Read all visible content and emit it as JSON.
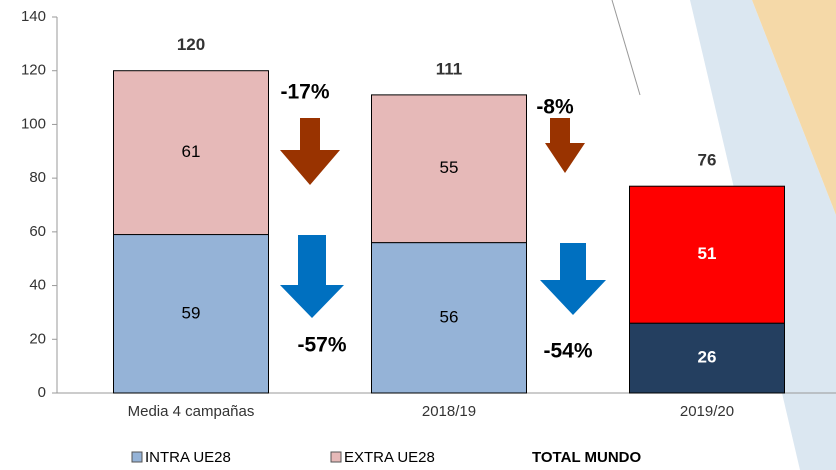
{
  "chart_data": {
    "type": "stacked_bar",
    "categories": [
      "Media 4 campañas",
      "2018/19",
      "2019/20"
    ],
    "series": [
      {
        "name": "INTRA UE28",
        "color": "#95b3d7",
        "colors": [
          "#95b3d7",
          "#95b3d7",
          "#243f60"
        ],
        "values": [
          59,
          56,
          26
        ]
      },
      {
        "name": "EXTRA UE28",
        "color": "#e6b9b8",
        "colors": [
          "#e6b9b8",
          "#e6b9b8",
          "#ff0000"
        ],
        "values": [
          61,
          55,
          51
        ]
      }
    ],
    "totals_name": "TOTAL MUNDO",
    "totals": [
      120,
      111,
      76
    ],
    "annotations": [
      "-17%",
      "-57%",
      "-8%",
      "-54%"
    ],
    "ylim": [
      0,
      140
    ],
    "yticks": [
      0,
      20,
      40,
      60,
      80,
      100,
      120,
      140
    ],
    "grid": false
  }
}
